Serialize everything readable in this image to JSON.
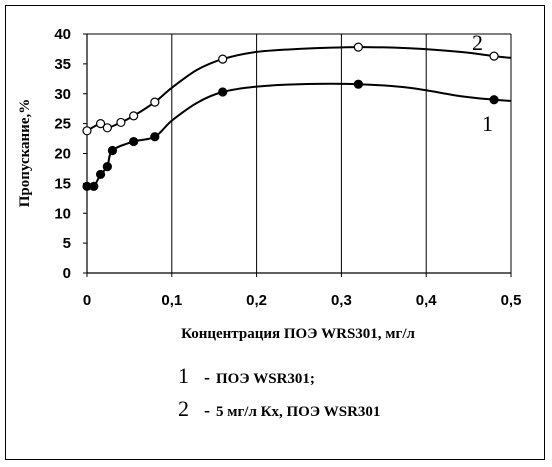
{
  "chart_data": {
    "type": "line",
    "xlabel": "Концентрация ПОЭ WRS301, мг/л",
    "ylabel": "Пропускание,%",
    "xlim": [
      0,
      0.5
    ],
    "ylim": [
      0,
      40
    ],
    "x_ticks": [
      "0",
      "0,1",
      "0,2",
      "0,3",
      "0,4",
      "0,5"
    ],
    "y_ticks": [
      "0",
      "5",
      "10",
      "15",
      "20",
      "25",
      "30",
      "35",
      "40"
    ],
    "x_tick_values": [
      0,
      0.1,
      0.2,
      0.3,
      0.4,
      0.5
    ],
    "y_tick_values": [
      0,
      5,
      10,
      15,
      20,
      25,
      30,
      35,
      40
    ],
    "grid": "vertical",
    "series": [
      {
        "name": "1",
        "marker": "filled-circle",
        "points": [
          [
            0,
            14.5
          ],
          [
            0.008,
            14.5
          ],
          [
            0.016,
            16.5
          ],
          [
            0.024,
            17.8
          ],
          [
            0.03,
            20.5
          ],
          [
            0.055,
            22
          ],
          [
            0.08,
            22.8
          ],
          [
            0.16,
            30.3
          ],
          [
            0.32,
            31.6
          ],
          [
            0.48,
            29
          ]
        ],
        "curve": [
          [
            0,
            14.5
          ],
          [
            0.008,
            14.5
          ],
          [
            0.016,
            16.5
          ],
          [
            0.024,
            17.8
          ],
          [
            0.03,
            20.5
          ],
          [
            0.055,
            22
          ],
          [
            0.08,
            22.8
          ],
          [
            0.1,
            25.5
          ],
          [
            0.13,
            28.5
          ],
          [
            0.16,
            30.3
          ],
          [
            0.2,
            31.2
          ],
          [
            0.25,
            31.6
          ],
          [
            0.32,
            31.6
          ],
          [
            0.38,
            31
          ],
          [
            0.44,
            29.6
          ],
          [
            0.48,
            29
          ],
          [
            0.5,
            28.8
          ]
        ]
      },
      {
        "name": "2",
        "marker": "open-circle",
        "points": [
          [
            0,
            23.8
          ],
          [
            0.016,
            25
          ],
          [
            0.024,
            24.3
          ],
          [
            0.04,
            25.2
          ],
          [
            0.055,
            26.3
          ],
          [
            0.08,
            28.6
          ],
          [
            0.16,
            35.8
          ],
          [
            0.32,
            37.8
          ],
          [
            0.48,
            36.3
          ]
        ],
        "curve": [
          [
            0,
            23.8
          ],
          [
            0.016,
            25
          ],
          [
            0.024,
            24.3
          ],
          [
            0.04,
            25.2
          ],
          [
            0.055,
            26.3
          ],
          [
            0.08,
            28.6
          ],
          [
            0.1,
            31
          ],
          [
            0.13,
            34
          ],
          [
            0.16,
            35.8
          ],
          [
            0.2,
            37
          ],
          [
            0.25,
            37.5
          ],
          [
            0.32,
            37.8
          ],
          [
            0.38,
            37.6
          ],
          [
            0.44,
            37
          ],
          [
            0.48,
            36.3
          ],
          [
            0.5,
            36
          ]
        ]
      }
    ]
  },
  "legend": {
    "items": [
      {
        "num": "1",
        "dash": "-",
        "text": "ПОЭ WSR301;"
      },
      {
        "num": "2",
        "dash": "-",
        "text": "5 мг/л Кх, ПОЭ WSR301"
      }
    ]
  }
}
